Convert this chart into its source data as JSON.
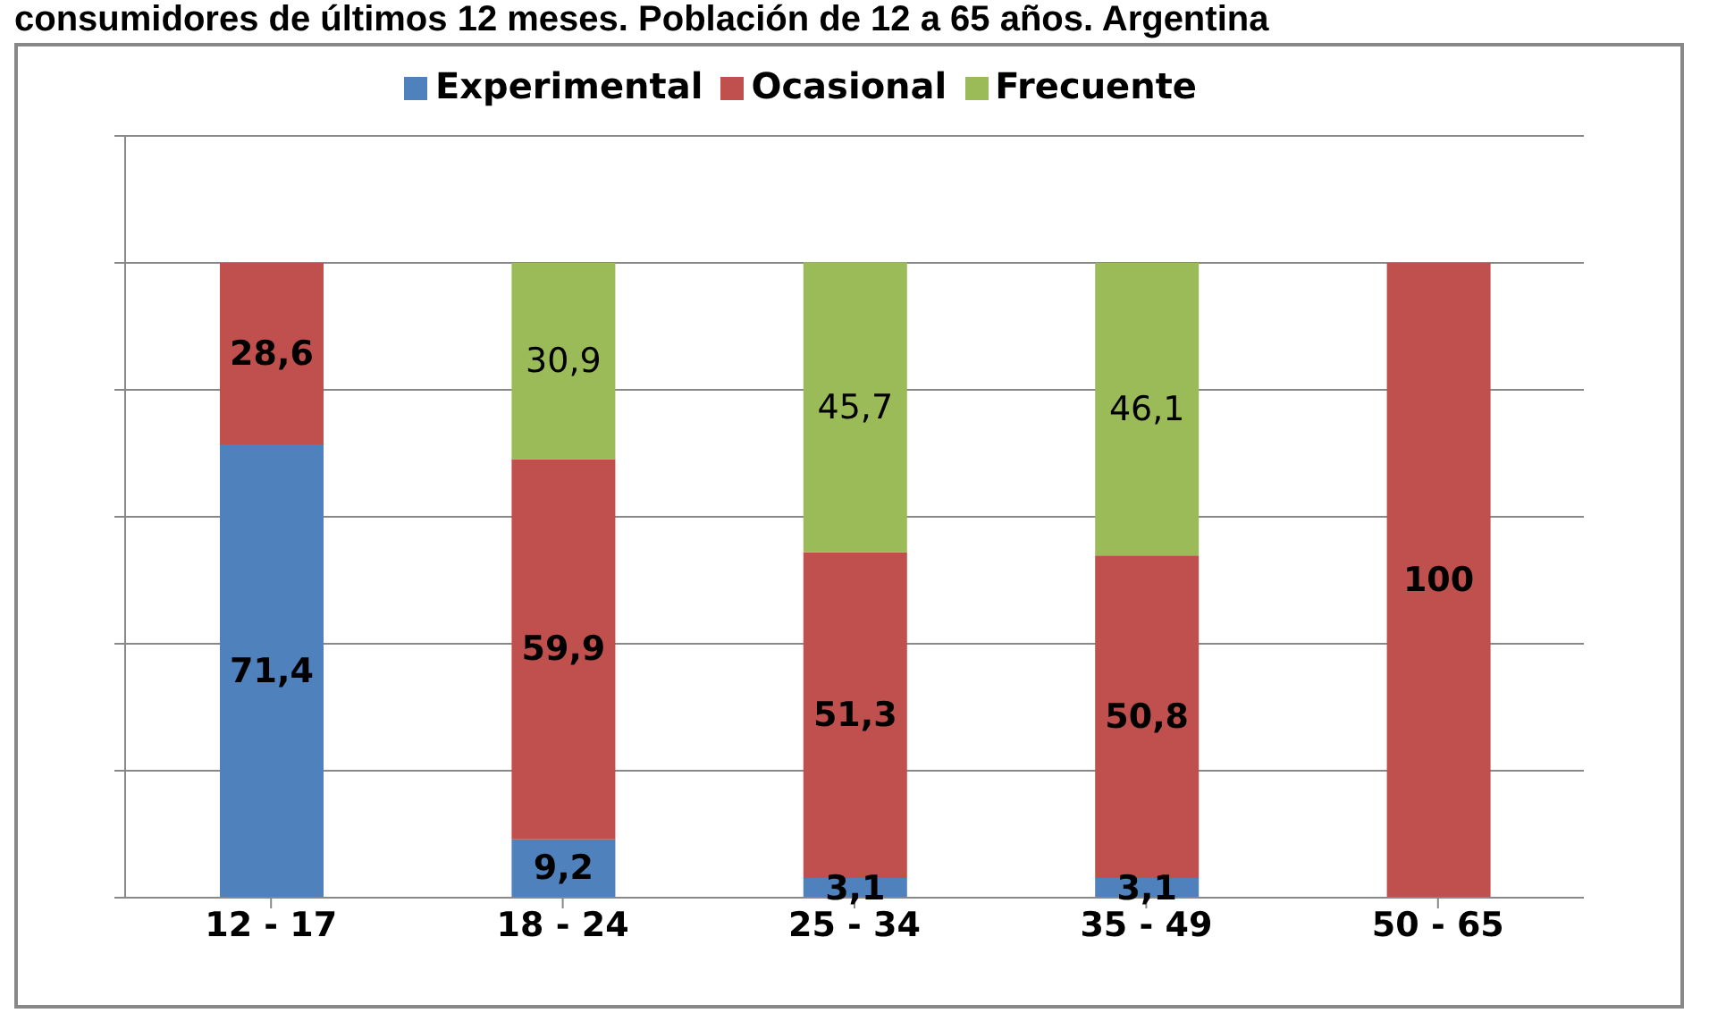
{
  "chart_data": {
    "type": "bar",
    "stacked": true,
    "title": "consumidores de últimos 12 meses. Población de 12 a 65 años. Argentina",
    "categories": [
      "12 - 17",
      "18 - 24",
      "25 - 34",
      "35 - 49",
      "50 - 65"
    ],
    "series": [
      {
        "name": "Experimental",
        "color": "#4f81bd",
        "values": [
          71.4,
          9.2,
          3.1,
          3.1,
          null
        ],
        "value_labels": [
          "71,4",
          "9,2",
          "3,1",
          "3,1",
          null
        ]
      },
      {
        "name": "Ocasional",
        "color": "#c0504d",
        "values": [
          28.6,
          59.9,
          51.3,
          50.8,
          100
        ],
        "value_labels": [
          "28,6",
          "59,9",
          "51,3",
          "50,8",
          "100"
        ]
      },
      {
        "name": "Frecuente",
        "color": "#9bbb59",
        "values": [
          null,
          30.9,
          45.7,
          46.1,
          null
        ],
        "value_labels": [
          null,
          "30,9",
          "45,7",
          "46,1",
          null
        ]
      }
    ],
    "ylim": [
      0,
      120
    ],
    "yticks": [
      {
        "value": 0,
        "label": null
      },
      {
        "value": 20,
        "label": null
      },
      {
        "value": 40,
        "label": null
      },
      {
        "value": 60,
        "label": null
      },
      {
        "value": 80,
        "label": null
      },
      {
        "value": 100,
        "label": null
      },
      {
        "value": 120,
        "label": null
      }
    ],
    "tick_labels": "x",
    "grid": "y",
    "legend": "top"
  }
}
